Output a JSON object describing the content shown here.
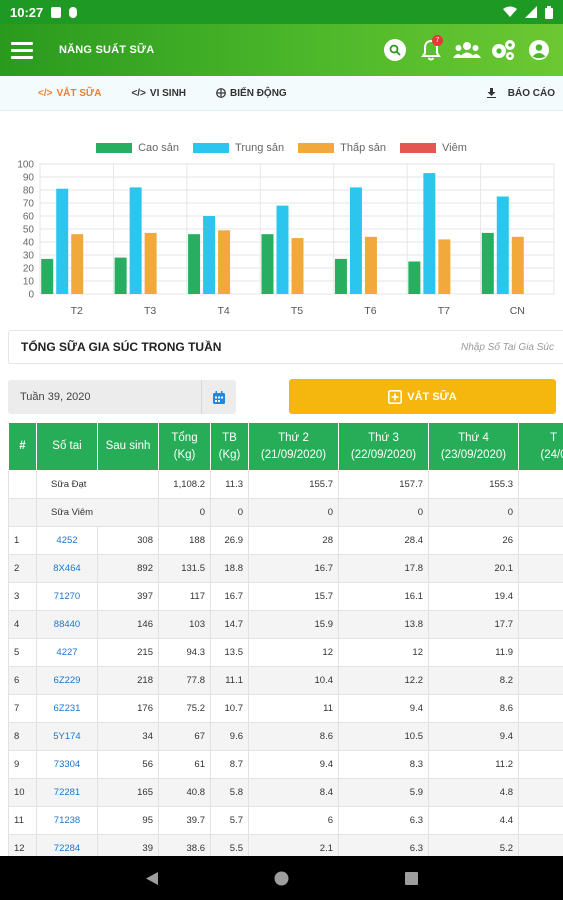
{
  "status_bar": {
    "time": "10:27"
  },
  "app_bar": {
    "title": "NĂNG SUẤT SỮA",
    "notification_count": "7"
  },
  "tabs": [
    {
      "label": "VẮT SỮA",
      "icon": "code-icon",
      "active": true
    },
    {
      "label": "VI SINH",
      "icon": "code-icon",
      "active": false
    },
    {
      "label": "BIẾN ĐỘNG",
      "icon": "grid-icon",
      "active": false
    }
  ],
  "report_label": "BÁO CÁO",
  "chart_data": {
    "type": "bar",
    "categories": [
      "T2",
      "T3",
      "T4",
      "T5",
      "T6",
      "T7",
      "CN"
    ],
    "series": [
      {
        "name": "Cao sản",
        "color": "#27ae60",
        "values": [
          27,
          28,
          46,
          46,
          27,
          25,
          47
        ]
      },
      {
        "name": "Trung sản",
        "color": "#2cc5ee",
        "values": [
          81,
          82,
          60,
          68,
          82,
          93,
          75
        ]
      },
      {
        "name": "Thấp sản",
        "color": "#f2a93b",
        "values": [
          46,
          47,
          49,
          43,
          44,
          42,
          44
        ]
      },
      {
        "name": "Viêm",
        "color": "#e4574e",
        "values": [
          0,
          0,
          0,
          0,
          0,
          0,
          0
        ]
      }
    ],
    "ylim": [
      0,
      100
    ],
    "yticks": [
      0,
      10,
      20,
      30,
      40,
      50,
      60,
      70,
      80,
      90,
      100
    ],
    "grid": true,
    "legend": "top-center"
  },
  "week_section": {
    "title": "TỔNG SỮA GIA SÚC TRONG TUẦN",
    "tag_placeholder": "Nhập Số Tai Gia Súc"
  },
  "date_filter": {
    "value": "Tuần 39, 2020"
  },
  "milk_button": {
    "label": "VẮT SỮA"
  },
  "table": {
    "headers": [
      [
        "#",
        ""
      ],
      [
        "Số tai",
        ""
      ],
      [
        "Sau sinh",
        ""
      ],
      [
        "Tổng",
        "(Kg)"
      ],
      [
        "TB",
        "(Kg)"
      ],
      [
        "Thứ 2",
        "(21/09/2020)"
      ],
      [
        "Thứ 3",
        "(22/09/2020)"
      ],
      [
        "Thứ 4",
        "(23/09/2020)"
      ],
      [
        "T",
        "(24/0"
      ]
    ],
    "summary_rows": [
      {
        "label": "Sữa Đạt",
        "total": "1,108.2",
        "avg": "11.3",
        "d1": "155.7",
        "d2": "157.7",
        "d3": "155.3"
      },
      {
        "label": "Sữa Viêm",
        "total": "0",
        "avg": "0",
        "d1": "0",
        "d2": "0",
        "d3": "0"
      }
    ],
    "rows": [
      {
        "no": "1",
        "tag": "4252",
        "after": "308",
        "total": "188",
        "avg": "26.9",
        "d1": "28",
        "d2": "28.4",
        "d3": "26"
      },
      {
        "no": "2",
        "tag": "8X464",
        "after": "892",
        "total": "131.5",
        "avg": "18.8",
        "d1": "16.7",
        "d2": "17.8",
        "d3": "20.1"
      },
      {
        "no": "3",
        "tag": "71270",
        "after": "397",
        "total": "117",
        "avg": "16.7",
        "d1": "15.7",
        "d2": "16.1",
        "d3": "19.4"
      },
      {
        "no": "4",
        "tag": "88440",
        "after": "146",
        "total": "103",
        "avg": "14.7",
        "d1": "15.9",
        "d2": "13.8",
        "d3": "17.7"
      },
      {
        "no": "5",
        "tag": "4227",
        "after": "215",
        "total": "94.3",
        "avg": "13.5",
        "d1": "12",
        "d2": "12",
        "d3": "11.9"
      },
      {
        "no": "6",
        "tag": "6Z229",
        "after": "218",
        "total": "77.8",
        "avg": "11.1",
        "d1": "10.4",
        "d2": "12.2",
        "d3": "8.2"
      },
      {
        "no": "7",
        "tag": "6Z231",
        "after": "176",
        "total": "75.2",
        "avg": "10.7",
        "d1": "11",
        "d2": "9.4",
        "d3": "8.6"
      },
      {
        "no": "8",
        "tag": "5Y174",
        "after": "34",
        "total": "67",
        "avg": "9.6",
        "d1": "8.6",
        "d2": "10.5",
        "d3": "9.4"
      },
      {
        "no": "9",
        "tag": "73304",
        "after": "56",
        "total": "61",
        "avg": "8.7",
        "d1": "9.4",
        "d2": "8.3",
        "d3": "11.2"
      },
      {
        "no": "10",
        "tag": "72281",
        "after": "165",
        "total": "40.8",
        "avg": "5.8",
        "d1": "8.4",
        "d2": "5.9",
        "d3": "4.8"
      },
      {
        "no": "11",
        "tag": "71238",
        "after": "95",
        "total": "39.7",
        "avg": "5.7",
        "d1": "6",
        "d2": "6.3",
        "d3": "4.4"
      },
      {
        "no": "12",
        "tag": "72284",
        "after": "39",
        "total": "38.6",
        "avg": "5.5",
        "d1": "2.1",
        "d2": "6.3",
        "d3": "5.2"
      }
    ]
  }
}
